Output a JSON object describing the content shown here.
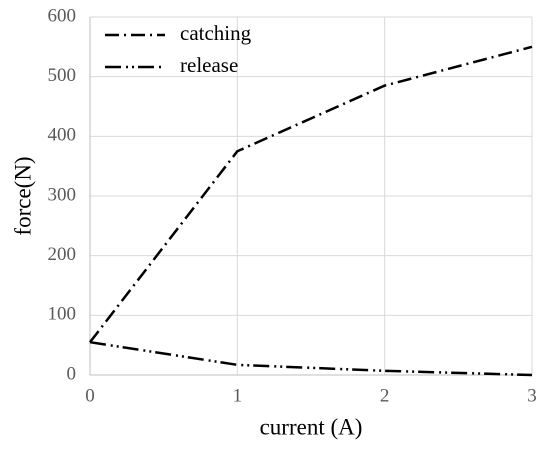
{
  "chart_data": {
    "type": "line",
    "x_label": "current (A)",
    "y_label": "force(N)",
    "x": [
      0,
      1,
      2,
      3
    ],
    "series": [
      {
        "name": "catching",
        "color": "#000000",
        "linestyle": "dash-dot",
        "values": [
          55,
          375,
          485,
          550
        ]
      },
      {
        "name": "release",
        "color": "#000000",
        "linestyle": "dash-dot-dot",
        "values": [
          55,
          17,
          7,
          0
        ]
      }
    ],
    "xlim": [
      0,
      3
    ],
    "xticks": [
      0,
      1,
      2,
      3
    ],
    "ylim": [
      0,
      600
    ],
    "yticks": [
      0,
      100,
      200,
      300,
      400,
      500,
      600
    ],
    "grid": true,
    "legend": "upper left"
  }
}
